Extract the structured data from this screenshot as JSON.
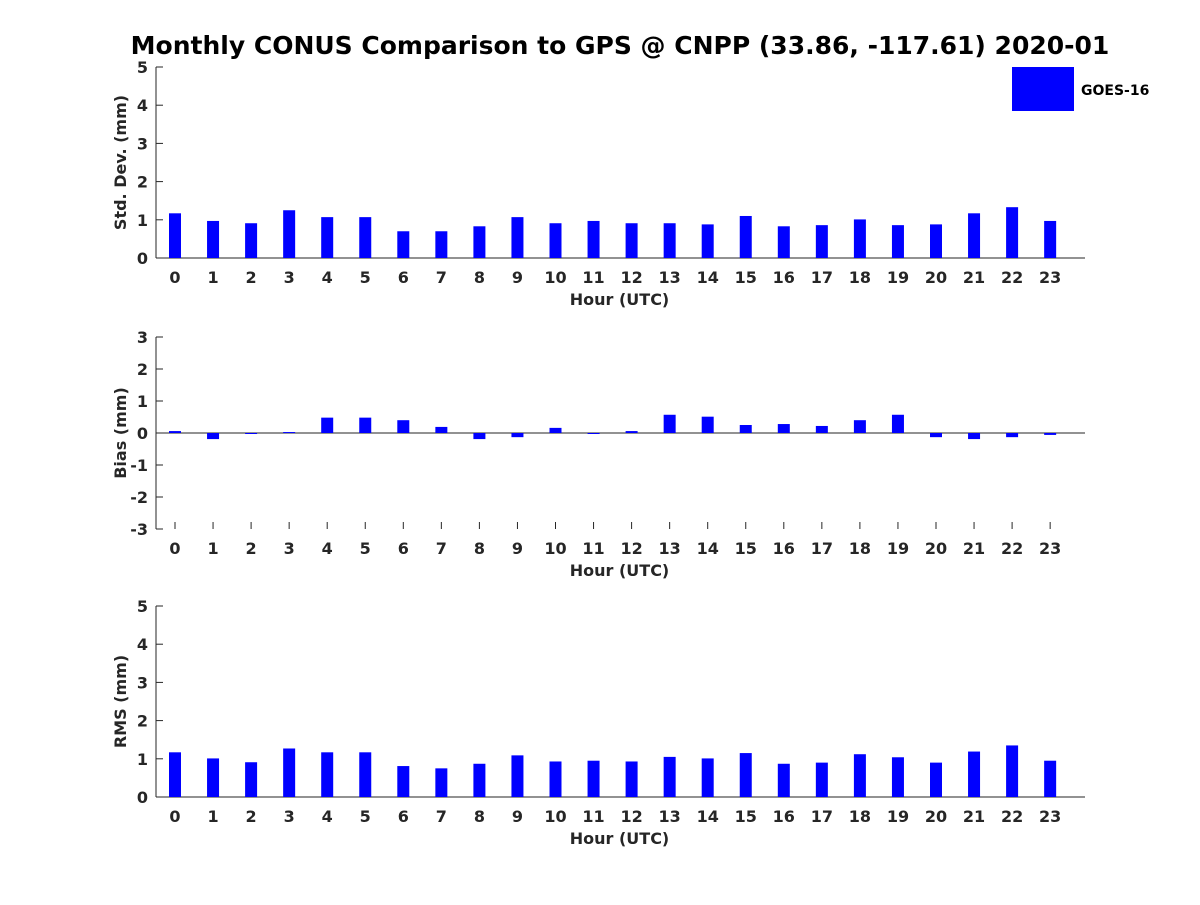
{
  "figure": {
    "title": "Monthly CONUS Comparison to GPS @ CNPP (33.86, -117.61) 2020-01",
    "legend": {
      "label": "GOES-16",
      "color": "#0000ff",
      "placement": "top-right"
    },
    "bar_color": "#0000ff"
  },
  "chart_data": [
    {
      "type": "bar",
      "title": "Monthly CONUS Comparison to GPS @ CNPP (33.86, -117.61) 2020-01",
      "xlabel": "Hour (UTC)",
      "ylabel": "Std. Dev. (mm)",
      "categories": [
        "0",
        "1",
        "2",
        "3",
        "4",
        "5",
        "6",
        "7",
        "8",
        "9",
        "10",
        "11",
        "12",
        "13",
        "14",
        "15",
        "16",
        "17",
        "18",
        "19",
        "20",
        "21",
        "22",
        "23"
      ],
      "yticks": [
        "0",
        "1",
        "2",
        "3",
        "4",
        "5"
      ],
      "ylim": [
        0,
        5
      ],
      "series": [
        {
          "name": "GOES-16",
          "values": [
            1.17,
            0.97,
            0.91,
            1.25,
            1.07,
            1.07,
            0.7,
            0.7,
            0.83,
            1.07,
            0.91,
            0.97,
            0.91,
            0.91,
            0.88,
            1.1,
            0.83,
            0.86,
            1.01,
            0.86,
            0.88,
            1.17,
            1.33,
            0.97
          ]
        }
      ],
      "grid": false,
      "legend": "top-right"
    },
    {
      "type": "bar",
      "xlabel": "Hour (UTC)",
      "ylabel": "Bias (mm)",
      "categories": [
        "0",
        "1",
        "2",
        "3",
        "4",
        "5",
        "6",
        "7",
        "8",
        "9",
        "10",
        "11",
        "12",
        "13",
        "14",
        "15",
        "16",
        "17",
        "18",
        "19",
        "20",
        "21",
        "22",
        "23"
      ],
      "yticks": [
        "-3",
        "-2",
        "-1",
        "0",
        "1",
        "2",
        "3"
      ],
      "ylim": [
        -3,
        3
      ],
      "series": [
        {
          "name": "GOES-16",
          "values": [
            0.06,
            -0.19,
            -0.03,
            0.03,
            0.48,
            0.48,
            0.4,
            0.19,
            -0.19,
            -0.13,
            0.16,
            -0.03,
            0.06,
            0.57,
            0.51,
            0.25,
            0.28,
            0.22,
            0.4,
            0.57,
            -0.13,
            -0.19,
            -0.13,
            -0.06
          ]
        }
      ],
      "grid": false
    },
    {
      "type": "bar",
      "xlabel": "Hour (UTC)",
      "ylabel": "RMS (mm)",
      "categories": [
        "0",
        "1",
        "2",
        "3",
        "4",
        "5",
        "6",
        "7",
        "8",
        "9",
        "10",
        "11",
        "12",
        "13",
        "14",
        "15",
        "16",
        "17",
        "18",
        "19",
        "20",
        "21",
        "22",
        "23"
      ],
      "yticks": [
        "0",
        "1",
        "2",
        "3",
        "4",
        "5"
      ],
      "ylim": [
        0,
        5
      ],
      "series": [
        {
          "name": "GOES-16",
          "values": [
            1.17,
            1.01,
            0.91,
            1.27,
            1.17,
            1.17,
            0.81,
            0.75,
            0.87,
            1.09,
            0.93,
            0.95,
            0.93,
            1.05,
            1.01,
            1.15,
            0.87,
            0.9,
            1.12,
            1.04,
            0.9,
            1.19,
            1.35,
            0.95
          ]
        }
      ],
      "grid": false
    }
  ]
}
